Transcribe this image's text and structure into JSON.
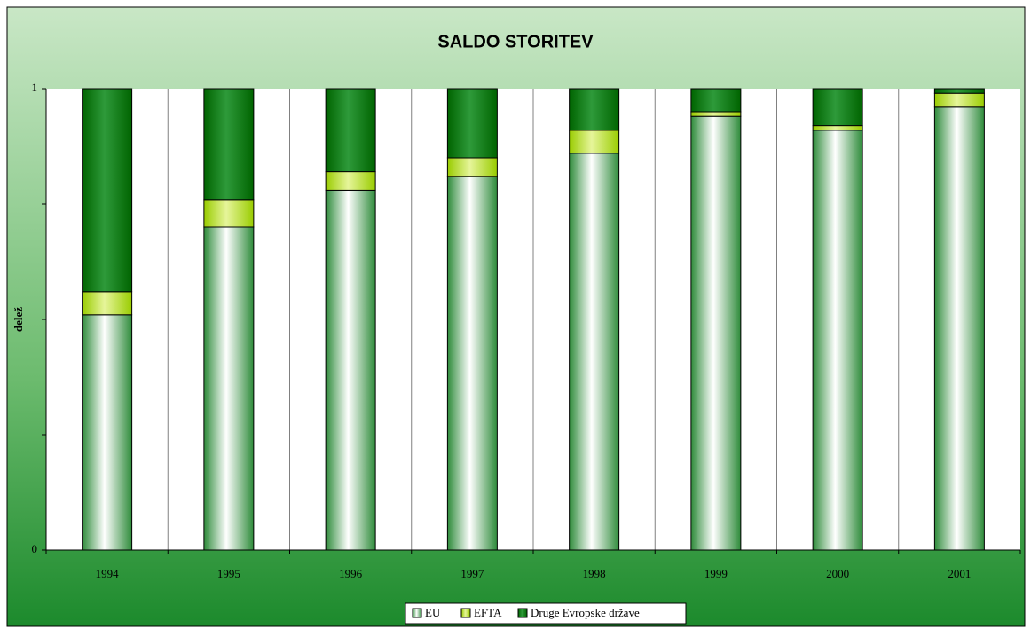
{
  "chart_data": {
    "type": "stacked_bar",
    "title": "SALDO STORITEV",
    "y_label": "delež",
    "categories": [
      "1994",
      "1995",
      "1996",
      "1997",
      "1998",
      "1999",
      "2000",
      "2001"
    ],
    "series": [
      {
        "name": "EU",
        "color": "#2e8b3a",
        "values": [
          0.51,
          0.7,
          0.78,
          0.81,
          0.86,
          0.94,
          0.91,
          0.96
        ]
      },
      {
        "name": "EFTA",
        "color": "#99cc00",
        "values": [
          0.05,
          0.06,
          0.04,
          0.04,
          0.05,
          0.01,
          0.01,
          0.03
        ]
      },
      {
        "name": "Druge Evropske države",
        "color": "#006400",
        "values": [
          0.44,
          0.24,
          0.18,
          0.15,
          0.09,
          0.05,
          0.08,
          0.01
        ]
      }
    ],
    "ylim": [
      0,
      1
    ],
    "yticks": [
      0,
      1
    ],
    "minor_yticks": [
      0.25,
      0.5,
      0.75
    ],
    "legend": "bottom"
  }
}
